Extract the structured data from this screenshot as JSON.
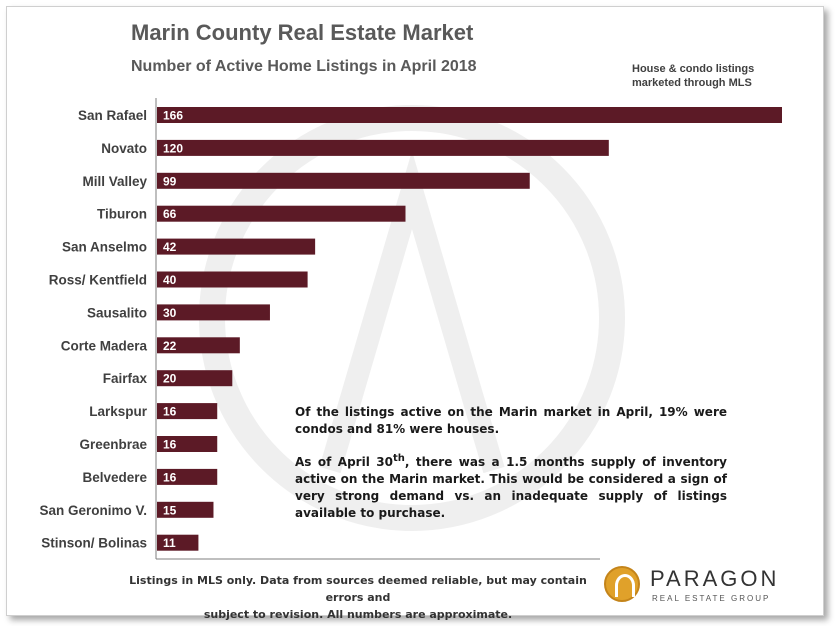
{
  "header": {
    "title": "Marin County Real Estate Market",
    "subtitle": "Number of Active Home Listings in April 2018",
    "note": "House & condo listings marketed through MLS"
  },
  "chart_data": {
    "type": "bar",
    "orientation": "horizontal",
    "categories": [
      "San Rafael",
      "Novato",
      "Mill Valley",
      "Tiburon",
      "San Anselmo",
      "Ross/ Kentfield",
      "Sausalito",
      "Corte Madera",
      "Fairfax",
      "Larkspur",
      "Greenbrae",
      "Belvedere",
      "San Geronimo V.",
      "Stinson/ Bolinas"
    ],
    "values": [
      166,
      120,
      99,
      66,
      42,
      40,
      30,
      22,
      20,
      16,
      16,
      16,
      15,
      11
    ],
    "title": "Number of Active Home Listings in April 2018",
    "xlim": [
      0,
      166
    ],
    "grid": false,
    "bar_color": "#5c1a26"
  },
  "commentary": {
    "p1": "Of the listings active on the Marin market in April, 19% were condos and 81% were houses.",
    "p2_pre": "As of April 30",
    "p2_sup": "th",
    "p2_post": ", there was a 1.5 months supply of inventory active on the Marin market. This would be considered a sign of very strong demand vs. an inadequate supply of listings available to purchase."
  },
  "footer": {
    "line1": "Listings in MLS only. Data from sources deemed reliable, but may contain errors and",
    "line2": "subject to revision. All numbers are approximate."
  },
  "logo": {
    "name": "PARAGON",
    "sub": "REAL ESTATE GROUP",
    "accent": "#e0a12a"
  }
}
